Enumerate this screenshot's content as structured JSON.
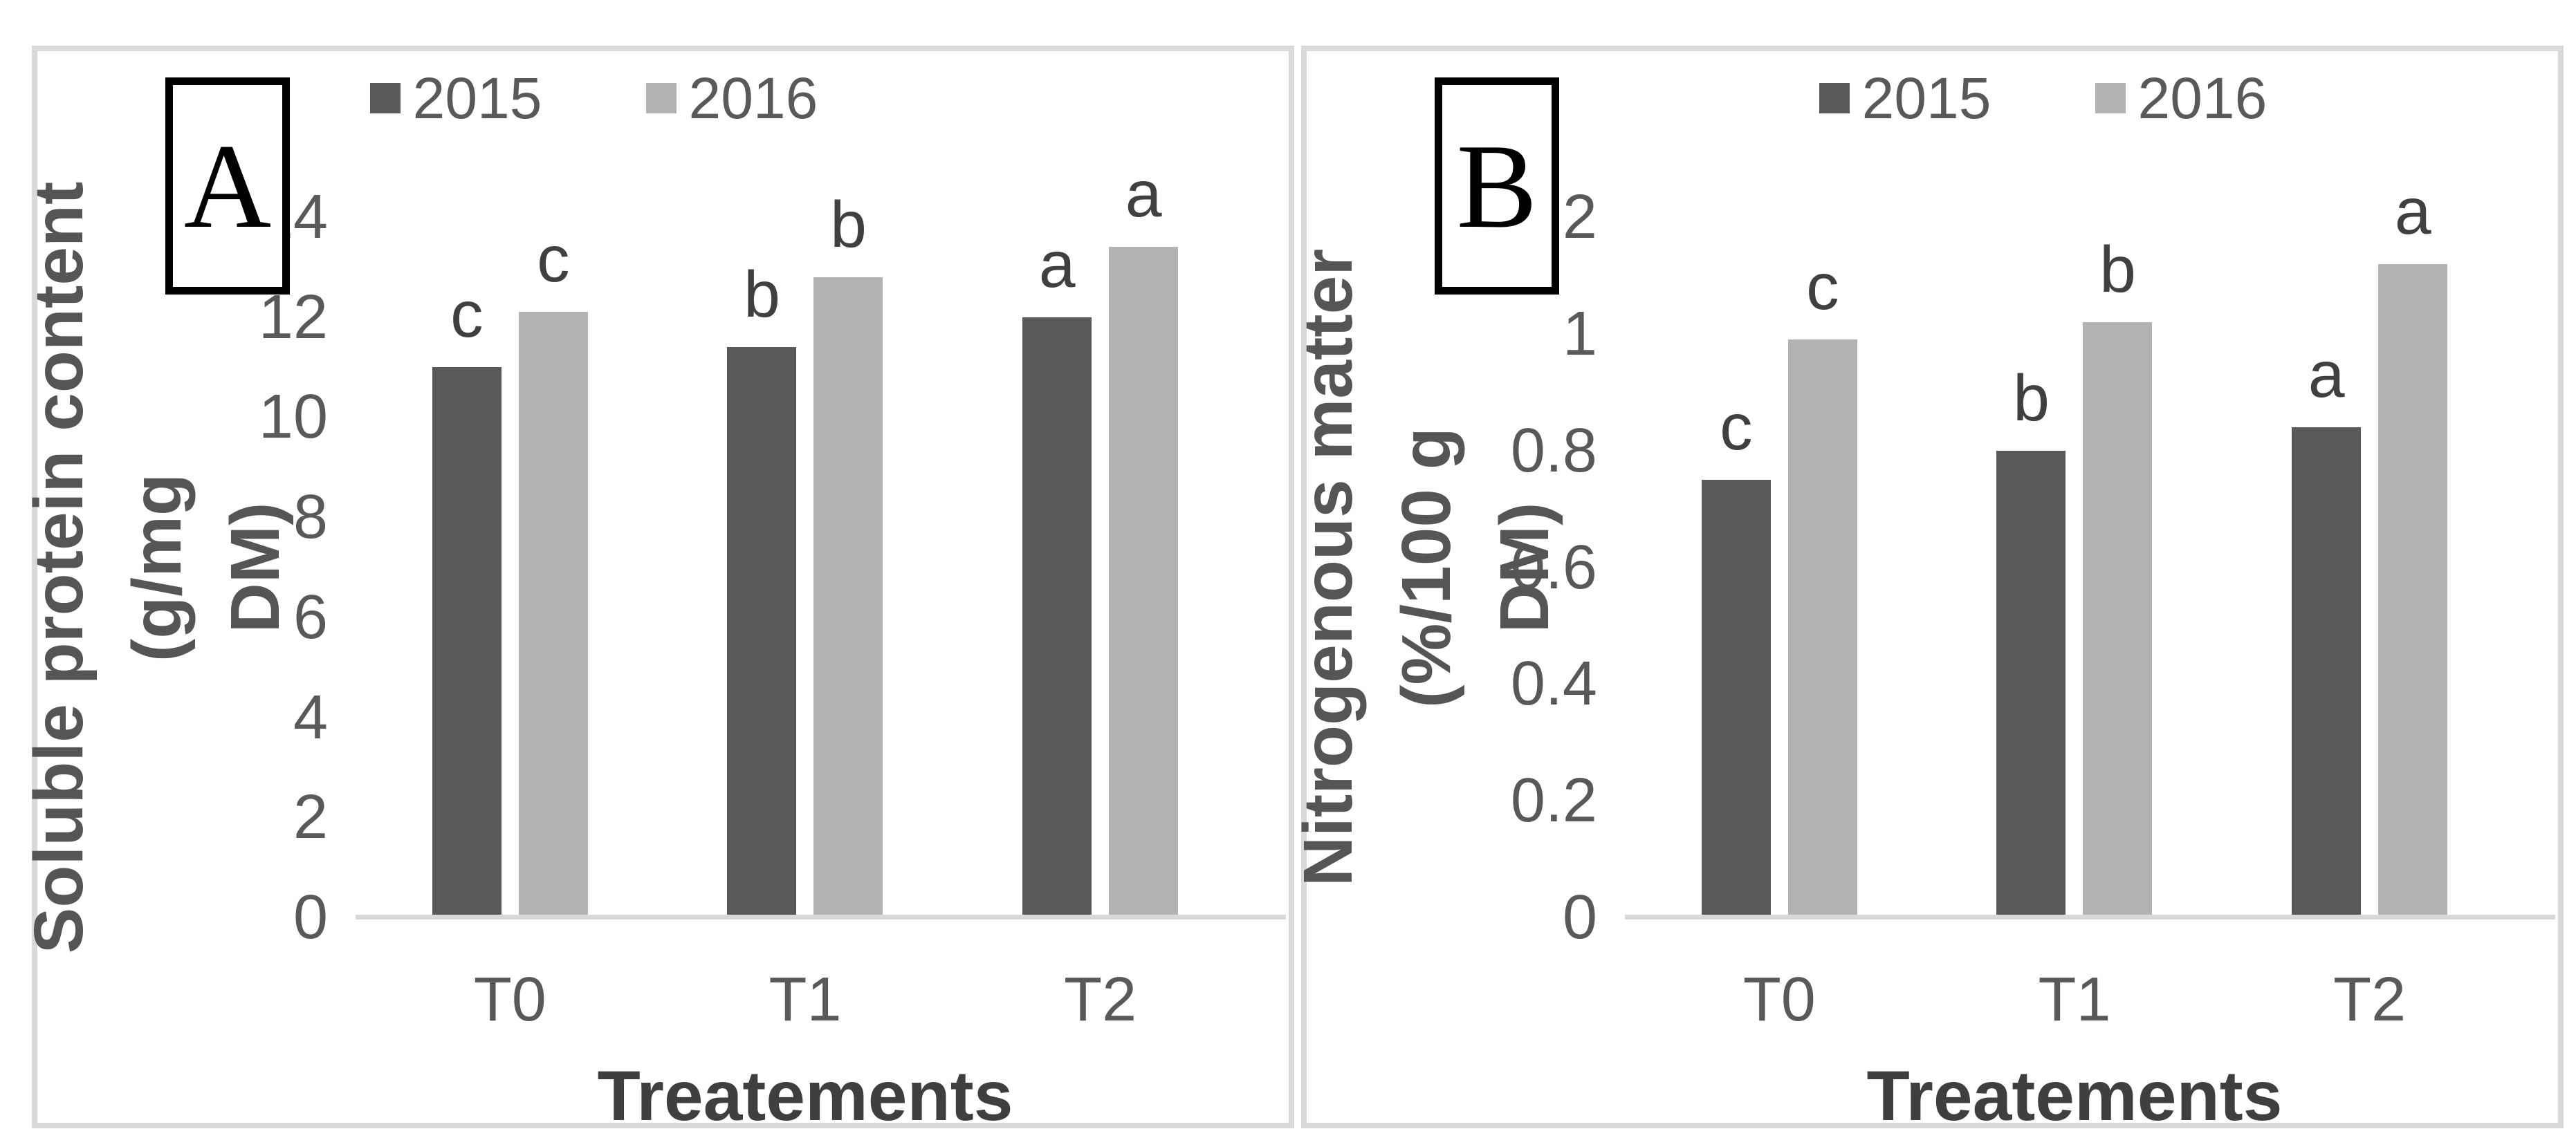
{
  "figure": {
    "background_color": "#ffffff",
    "panel_border_color": "#d9d9d9",
    "baseline_color": "#d9d9d9",
    "tick_text_color": "#595959",
    "axis_title_color": "#555555",
    "letter_text_color": "#404040"
  },
  "chart_data": [
    {
      "type": "bar",
      "panel_label": "A",
      "y_axis_title_line1": "Soluble protein content (g/mg",
      "y_axis_title_line2": "DM)",
      "x_axis_title": "Treatements",
      "categories": [
        "T0",
        "T1",
        "T2"
      ],
      "ylim": [
        0,
        14
      ],
      "ytick_labels": [
        "0",
        "2",
        "4",
        "6",
        "8",
        "10",
        "12",
        "14"
      ],
      "legend_position": "top-center",
      "grid": "off",
      "series": [
        {
          "name": "2015",
          "color": "#595959",
          "values": [
            11.0,
            11.4,
            12.0
          ],
          "letters": [
            "c",
            "b",
            "a"
          ]
        },
        {
          "name": "2016",
          "color": "#b3b3b3",
          "values": [
            12.1,
            12.8,
            13.4
          ],
          "letters": [
            "c",
            "b",
            "a"
          ]
        }
      ]
    },
    {
      "type": "bar",
      "panel_label": "B",
      "y_axis_title_line1": "Nitrogenous matter (%/100 g",
      "y_axis_title_line2": "DM)",
      "x_axis_title": "Treatements",
      "categories": [
        "T0",
        "T1",
        "T2"
      ],
      "ylim": [
        0,
        1.2
      ],
      "ytick_labels": [
        "0",
        "0.2",
        "0.4",
        "0.6",
        "0.8",
        "1",
        "1.2"
      ],
      "legend_position": "top-center",
      "grid": "off",
      "series": [
        {
          "name": "2015",
          "color": "#595959",
          "values": [
            0.75,
            0.8,
            0.84
          ],
          "letters": [
            "c",
            "b",
            "a"
          ]
        },
        {
          "name": "2016",
          "color": "#b3b3b3",
          "values": [
            0.99,
            1.02,
            1.12
          ],
          "letters": [
            "c",
            "b",
            "a"
          ]
        }
      ]
    }
  ]
}
